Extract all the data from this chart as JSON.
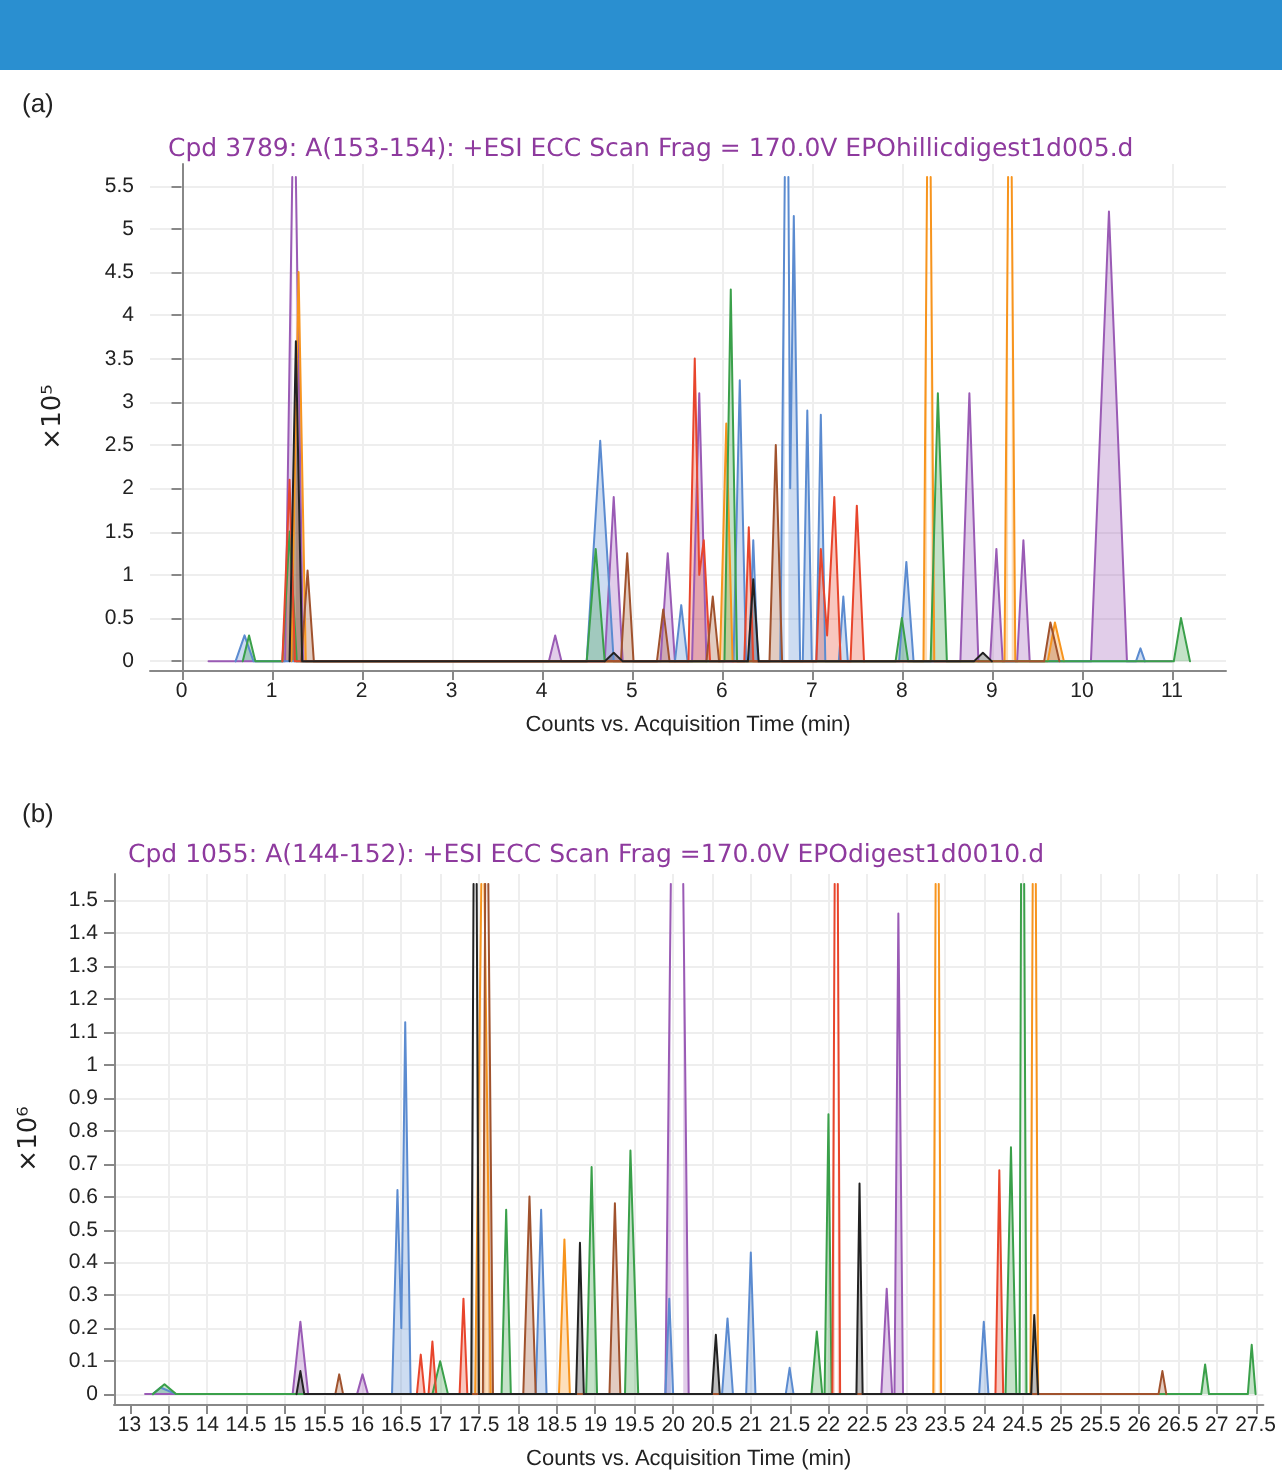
{
  "chart_data": [
    {
      "type": "area",
      "title": "(a)",
      "subtitle": "Cpd 3789: A(153-154): +ESI ECC Scan Frag = 170.0V EPOhillicdigest1d005.d",
      "xlabel": "Counts vs. Acquisition Time (min)",
      "ylabel": "×10⁵",
      "xlim": [
        -0.35,
        11.6
      ],
      "xticks": [
        0,
        1,
        2,
        3,
        4,
        5,
        6,
        7,
        8,
        9,
        10,
        11
      ],
      "ylim": [
        -0.1,
        5.75
      ],
      "yticks": [
        0,
        0.5,
        1,
        1.5,
        2,
        2.5,
        3,
        3.5,
        4,
        4.5,
        5,
        5.5
      ],
      "grid": true,
      "marker": "none",
      "line_style": "solid",
      "series": [
        {
          "color": "#9a5bb5",
          "x": [
            0.3,
            1.15,
            1.23,
            1.25,
            1.27,
            1.35,
            4.08,
            4.15,
            4.22,
            4.7,
            4.8,
            4.9,
            5.32,
            5.4,
            5.48,
            5.67,
            5.75,
            5.83,
            8.65,
            8.75,
            8.85,
            8.98,
            9.05,
            9.12,
            9.28,
            9.35,
            9.42,
            10.1,
            10.3,
            10.5,
            11.0
          ],
          "values": [
            0,
            0,
            5.6,
            null,
            5.6,
            0,
            0,
            0.3,
            0,
            0,
            1.9,
            0,
            0,
            1.25,
            0,
            0,
            3.1,
            0,
            0,
            3.1,
            0,
            0,
            1.3,
            0,
            0,
            1.4,
            0,
            0,
            5.2,
            0,
            0
          ]
        },
        {
          "color": "#5b8bd0",
          "x": [
            0.6,
            0.7,
            0.8,
            4.5,
            4.65,
            4.8,
            5.48,
            5.55,
            5.62,
            6.13,
            6.2,
            6.27,
            6.3,
            6.35,
            6.4,
            6.65,
            6.7,
            6.72,
            6.74,
            6.76,
            6.8,
            6.87,
            6.9,
            6.95,
            7.0,
            7.05,
            7.1,
            7.15,
            7.3,
            7.35,
            7.4,
            7.97,
            8.05,
            8.13,
            10.6,
            10.65,
            10.7
          ],
          "values": [
            0,
            0.3,
            0,
            0,
            2.55,
            0,
            0,
            0.65,
            0,
            0,
            3.25,
            0,
            0,
            1.4,
            0,
            0,
            5.6,
            null,
            5.6,
            2,
            5.15,
            0,
            0,
            2.9,
            0,
            0,
            2.85,
            0,
            0,
            0.75,
            0,
            0,
            1.15,
            0,
            0,
            0.15,
            0
          ]
        },
        {
          "color": "#f7941d",
          "x": [
            1.22,
            1.3,
            1.38,
            5.98,
            6.05,
            6.12,
            8.24,
            8.28,
            8.3,
            8.32,
            8.36,
            9.14,
            9.18,
            9.2,
            9.22,
            9.26,
            9.62,
            9.7,
            9.8
          ],
          "values": [
            0,
            4.5,
            0,
            0,
            2.75,
            0,
            0,
            5.6,
            null,
            5.6,
            0,
            0,
            5.6,
            null,
            5.6,
            0,
            0,
            0.45,
            0
          ]
        },
        {
          "color": "#3aa04a",
          "x": [
            0.68,
            0.75,
            0.82,
            1.12,
            1.2,
            1.28,
            4.5,
            4.6,
            4.7,
            6.03,
            6.1,
            6.17,
            7.93,
            8.0,
            8.07,
            8.32,
            8.4,
            8.5,
            11.02,
            11.1,
            11.2
          ],
          "values": [
            0,
            0.3,
            0,
            0,
            1.5,
            0,
            0,
            1.3,
            0,
            0,
            4.3,
            0,
            0,
            0.5,
            0,
            0,
            3.1,
            0,
            0,
            0.5,
            0
          ]
        },
        {
          "color": "#e8452c",
          "x": [
            1.12,
            1.2,
            1.26,
            5.63,
            5.7,
            5.75,
            5.8,
            5.87,
            6.25,
            6.3,
            6.35,
            7.05,
            7.1,
            7.17,
            7.25,
            7.32,
            7.43,
            7.5,
            7.58
          ],
          "values": [
            0,
            2.1,
            0,
            0,
            3.5,
            1.0,
            1.4,
            0,
            0,
            1.55,
            0,
            0,
            1.3,
            0.3,
            1.9,
            0,
            0,
            1.8,
            0
          ]
        },
        {
          "color": "#a0522d",
          "x": [
            1.33,
            1.4,
            1.47,
            4.88,
            4.95,
            5.02,
            5.28,
            5.35,
            5.42,
            5.83,
            5.9,
            5.97,
            6.53,
            6.6,
            6.67,
            9.58,
            9.65,
            9.75
          ],
          "values": [
            0,
            1.05,
            0,
            0,
            1.25,
            0,
            0,
            0.6,
            0,
            0,
            0.75,
            0,
            0,
            2.5,
            0,
            0,
            0.45,
            0
          ]
        },
        {
          "color": "#222222",
          "x": [
            1.2,
            1.27,
            1.34,
            4.7,
            4.8,
            4.9,
            6.29,
            6.35,
            6.41,
            8.8,
            8.9,
            9.0
          ],
          "values": [
            0,
            3.7,
            0,
            0,
            0.1,
            0,
            0,
            0.95,
            0,
            0,
            0.1,
            0
          ]
        }
      ]
    },
    {
      "type": "area",
      "title": "(b)",
      "subtitle": "Cpd 1055: A(144-152): +ESI ECC Scan Frag =170.0V EPOdigest1d0010.d",
      "xlabel": "Counts vs. Acquisition Time (min)",
      "ylabel": "×10⁶",
      "xlim": [
        12.8,
        27.6
      ],
      "xticks": [
        13,
        13.5,
        14,
        14.5,
        15,
        15.5,
        16,
        16.5,
        17,
        17.5,
        18,
        18.5,
        19,
        19.5,
        20,
        20.5,
        21,
        21.5,
        22,
        22.5,
        23,
        23.5,
        24,
        24.5,
        25,
        25.5,
        26,
        26.5,
        27,
        27.5
      ],
      "ylim": [
        -0.03,
        1.58
      ],
      "yticks": [
        0,
        0.1,
        0.2,
        0.3,
        0.4,
        0.5,
        0.6,
        0.7,
        0.8,
        0.9,
        1,
        1.1,
        1.2,
        1.3,
        1.4,
        1.5
      ],
      "grid": true,
      "marker": "none",
      "line_style": "solid",
      "series": [
        {
          "color": "#9a5bb5",
          "x": [
            13.2,
            15.1,
            15.2,
            15.3,
            15.93,
            16.0,
            16.07,
            19.9,
            19.97,
            20.05,
            20.13,
            20.2,
            22.68,
            22.75,
            22.82,
            22.85,
            22.9,
            22.96,
            23.5
          ],
          "values": [
            0,
            0,
            0.22,
            0,
            0,
            0.06,
            0,
            0,
            1.55,
            null,
            1.55,
            0,
            0,
            0.32,
            0,
            0,
            1.46,
            0,
            0
          ]
        },
        {
          "color": "#5b8bd0",
          "x": [
            13.3,
            13.4,
            13.6,
            16.38,
            16.45,
            16.5,
            16.55,
            16.62,
            18.23,
            18.3,
            18.37,
            19.9,
            19.95,
            20.0,
            20.63,
            20.7,
            20.77,
            20.94,
            21.0,
            21.06,
            21.45,
            21.5,
            21.55,
            23.94,
            24.0,
            24.06
          ],
          "values": [
            0,
            0.02,
            0,
            0,
            0.62,
            0.2,
            1.13,
            0,
            0,
            0.56,
            0,
            0,
            0.29,
            0,
            0,
            0.23,
            0,
            0,
            0.43,
            0,
            0,
            0.08,
            0,
            0,
            0.22,
            0
          ]
        },
        {
          "color": "#f7941d",
          "x": [
            17.45,
            17.53,
            17.55,
            17.57,
            17.65,
            18.53,
            18.6,
            18.67,
            23.35,
            23.38,
            23.4,
            23.42,
            23.45,
            24.6,
            24.63,
            24.65,
            24.67,
            24.7
          ],
          "values": [
            0,
            1.55,
            null,
            1.55,
            0,
            0,
            0.47,
            0,
            0,
            1.55,
            null,
            1.55,
            0,
            0,
            1.55,
            null,
            1.55,
            0
          ]
        },
        {
          "color": "#3aa04a",
          "x": [
            13.3,
            13.45,
            13.6,
            16.9,
            17.0,
            17.1,
            17.79,
            17.85,
            17.91,
            18.88,
            18.95,
            19.02,
            19.38,
            19.45,
            19.55,
            21.78,
            21.85,
            21.92,
            21.95,
            22.0,
            22.04,
            24.28,
            24.35,
            24.42,
            24.46,
            24.48,
            24.5,
            24.52,
            24.55,
            26.8,
            26.85,
            26.9,
            27.4,
            27.45,
            27.5
          ],
          "values": [
            0,
            0.03,
            0,
            0,
            0.1,
            0,
            0,
            0.56,
            0,
            0,
            0.69,
            0,
            0,
            0.74,
            0,
            0,
            0.19,
            0,
            0,
            0.85,
            0,
            0,
            0.75,
            0,
            0,
            1.55,
            null,
            1.55,
            0,
            0,
            0.09,
            0,
            0,
            0.15,
            0
          ]
        },
        {
          "color": "#e8452c",
          "x": [
            16.7,
            16.75,
            16.8,
            16.85,
            16.9,
            16.95,
            17.25,
            17.3,
            17.35,
            22.05,
            22.08,
            22.1,
            22.12,
            22.15,
            24.15,
            24.2,
            24.25
          ],
          "values": [
            0,
            0.12,
            0,
            0,
            0.16,
            0,
            0,
            0.29,
            0,
            0,
            1.55,
            null,
            1.55,
            0,
            0,
            0.68,
            0
          ]
        },
        {
          "color": "#a0522d",
          "x": [
            15.65,
            15.7,
            15.75,
            17.55,
            17.58,
            17.6,
            17.62,
            17.68,
            18.07,
            18.15,
            18.23,
            19.18,
            19.25,
            19.32,
            26.25,
            26.3,
            26.35
          ],
          "values": [
            0,
            0.06,
            0,
            0,
            1.55,
            null,
            1.55,
            0,
            0,
            0.6,
            0,
            0,
            0.58,
            0,
            0,
            0.07,
            0
          ]
        },
        {
          "color": "#222222",
          "x": [
            15.15,
            15.2,
            15.25,
            17.4,
            17.43,
            17.45,
            17.47,
            17.5,
            18.75,
            18.8,
            18.85,
            20.5,
            20.55,
            20.6,
            22.36,
            22.4,
            22.44,
            24.61,
            24.65,
            24.7
          ],
          "values": [
            0,
            0.07,
            0,
            0,
            1.55,
            null,
            1.55,
            0,
            0,
            0.46,
            0,
            0,
            0.18,
            0,
            0,
            0.64,
            0,
            0,
            0.24,
            0
          ]
        }
      ]
    }
  ]
}
